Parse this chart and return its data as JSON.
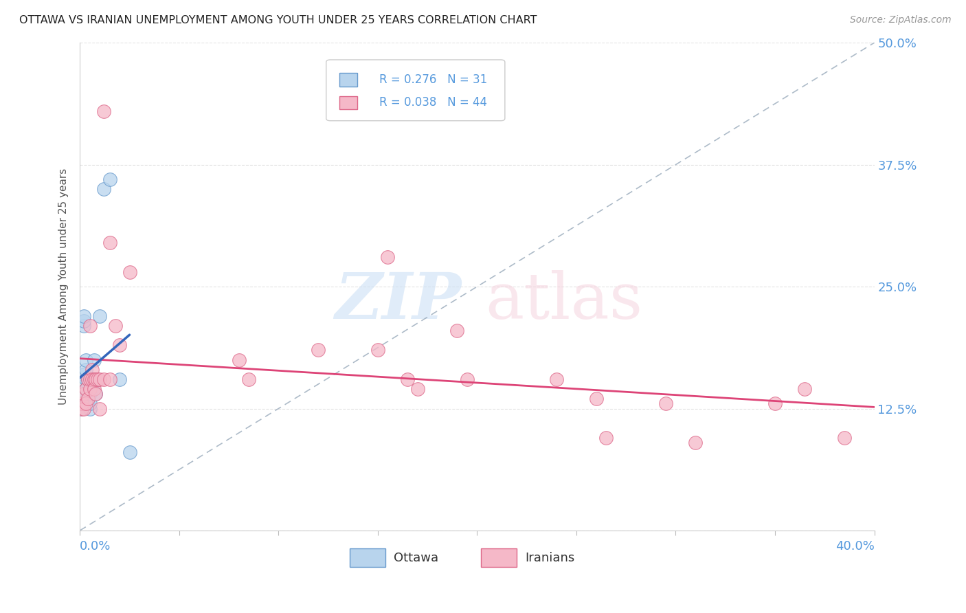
{
  "title": "OTTAWA VS IRANIAN UNEMPLOYMENT AMONG YOUTH UNDER 25 YEARS CORRELATION CHART",
  "source": "Source: ZipAtlas.com",
  "ylabel_label": "Unemployment Among Youth under 25 years",
  "legend_ottawa": "Ottawa",
  "legend_iranians": "Iranians",
  "ottawa_R": "0.276",
  "ottawa_N": "31",
  "iranians_R": "0.038",
  "iranians_N": "44",
  "ottawa_color": "#b8d4ed",
  "iranians_color": "#f5b8c8",
  "ottawa_edge_color": "#6699cc",
  "iranians_edge_color": "#dd6688",
  "ottawa_line_color": "#3366bb",
  "iranians_line_color": "#dd4477",
  "diag_color": "#99aabb",
  "grid_color": "#dddddd",
  "background_color": "#ffffff",
  "xlim": [
    0.0,
    0.4
  ],
  "ylim": [
    0.0,
    0.5
  ],
  "x_ticks": [
    0.0,
    0.05,
    0.1,
    0.15,
    0.2,
    0.25,
    0.3,
    0.35,
    0.4
  ],
  "y_ticks": [
    0.0,
    0.125,
    0.25,
    0.375,
    0.5
  ],
  "y_tick_labels": [
    "",
    "12.5%",
    "25.0%",
    "37.5%",
    "50.0%"
  ],
  "ottawa_x": [
    0.001,
    0.001,
    0.001,
    0.002,
    0.002,
    0.002,
    0.002,
    0.003,
    0.003,
    0.003,
    0.003,
    0.004,
    0.004,
    0.004,
    0.004,
    0.004,
    0.005,
    0.005,
    0.005,
    0.005,
    0.006,
    0.006,
    0.007,
    0.007,
    0.008,
    0.009,
    0.01,
    0.012,
    0.015,
    0.02,
    0.025
  ],
  "ottawa_y": [
    0.125,
    0.13,
    0.135,
    0.16,
    0.21,
    0.215,
    0.22,
    0.145,
    0.155,
    0.165,
    0.175,
    0.13,
    0.135,
    0.14,
    0.15,
    0.155,
    0.125,
    0.13,
    0.14,
    0.155,
    0.145,
    0.155,
    0.155,
    0.175,
    0.14,
    0.155,
    0.22,
    0.35,
    0.36,
    0.155,
    0.08
  ],
  "iranians_x": [
    0.001,
    0.001,
    0.002,
    0.002,
    0.003,
    0.003,
    0.004,
    0.004,
    0.005,
    0.005,
    0.005,
    0.006,
    0.006,
    0.007,
    0.007,
    0.008,
    0.008,
    0.009,
    0.01,
    0.01,
    0.012,
    0.012,
    0.015,
    0.015,
    0.018,
    0.02,
    0.025,
    0.08,
    0.085,
    0.12,
    0.15,
    0.155,
    0.165,
    0.17,
    0.19,
    0.195,
    0.24,
    0.26,
    0.265,
    0.295,
    0.31,
    0.35,
    0.365,
    0.385
  ],
  "iranians_y": [
    0.125,
    0.13,
    0.125,
    0.14,
    0.13,
    0.145,
    0.135,
    0.155,
    0.145,
    0.155,
    0.21,
    0.165,
    0.155,
    0.155,
    0.145,
    0.14,
    0.155,
    0.155,
    0.125,
    0.155,
    0.43,
    0.155,
    0.295,
    0.155,
    0.21,
    0.19,
    0.265,
    0.175,
    0.155,
    0.185,
    0.185,
    0.28,
    0.155,
    0.145,
    0.205,
    0.155,
    0.155,
    0.135,
    0.095,
    0.13,
    0.09,
    0.13,
    0.145,
    0.095
  ],
  "ottawa_trend_x": [
    0.0,
    0.025
  ],
  "iranians_trend_x": [
    0.0,
    0.4
  ],
  "title_fontsize": 11.5,
  "source_fontsize": 10,
  "tick_label_fontsize": 13,
  "legend_fontsize": 12,
  "ylabel_fontsize": 11
}
